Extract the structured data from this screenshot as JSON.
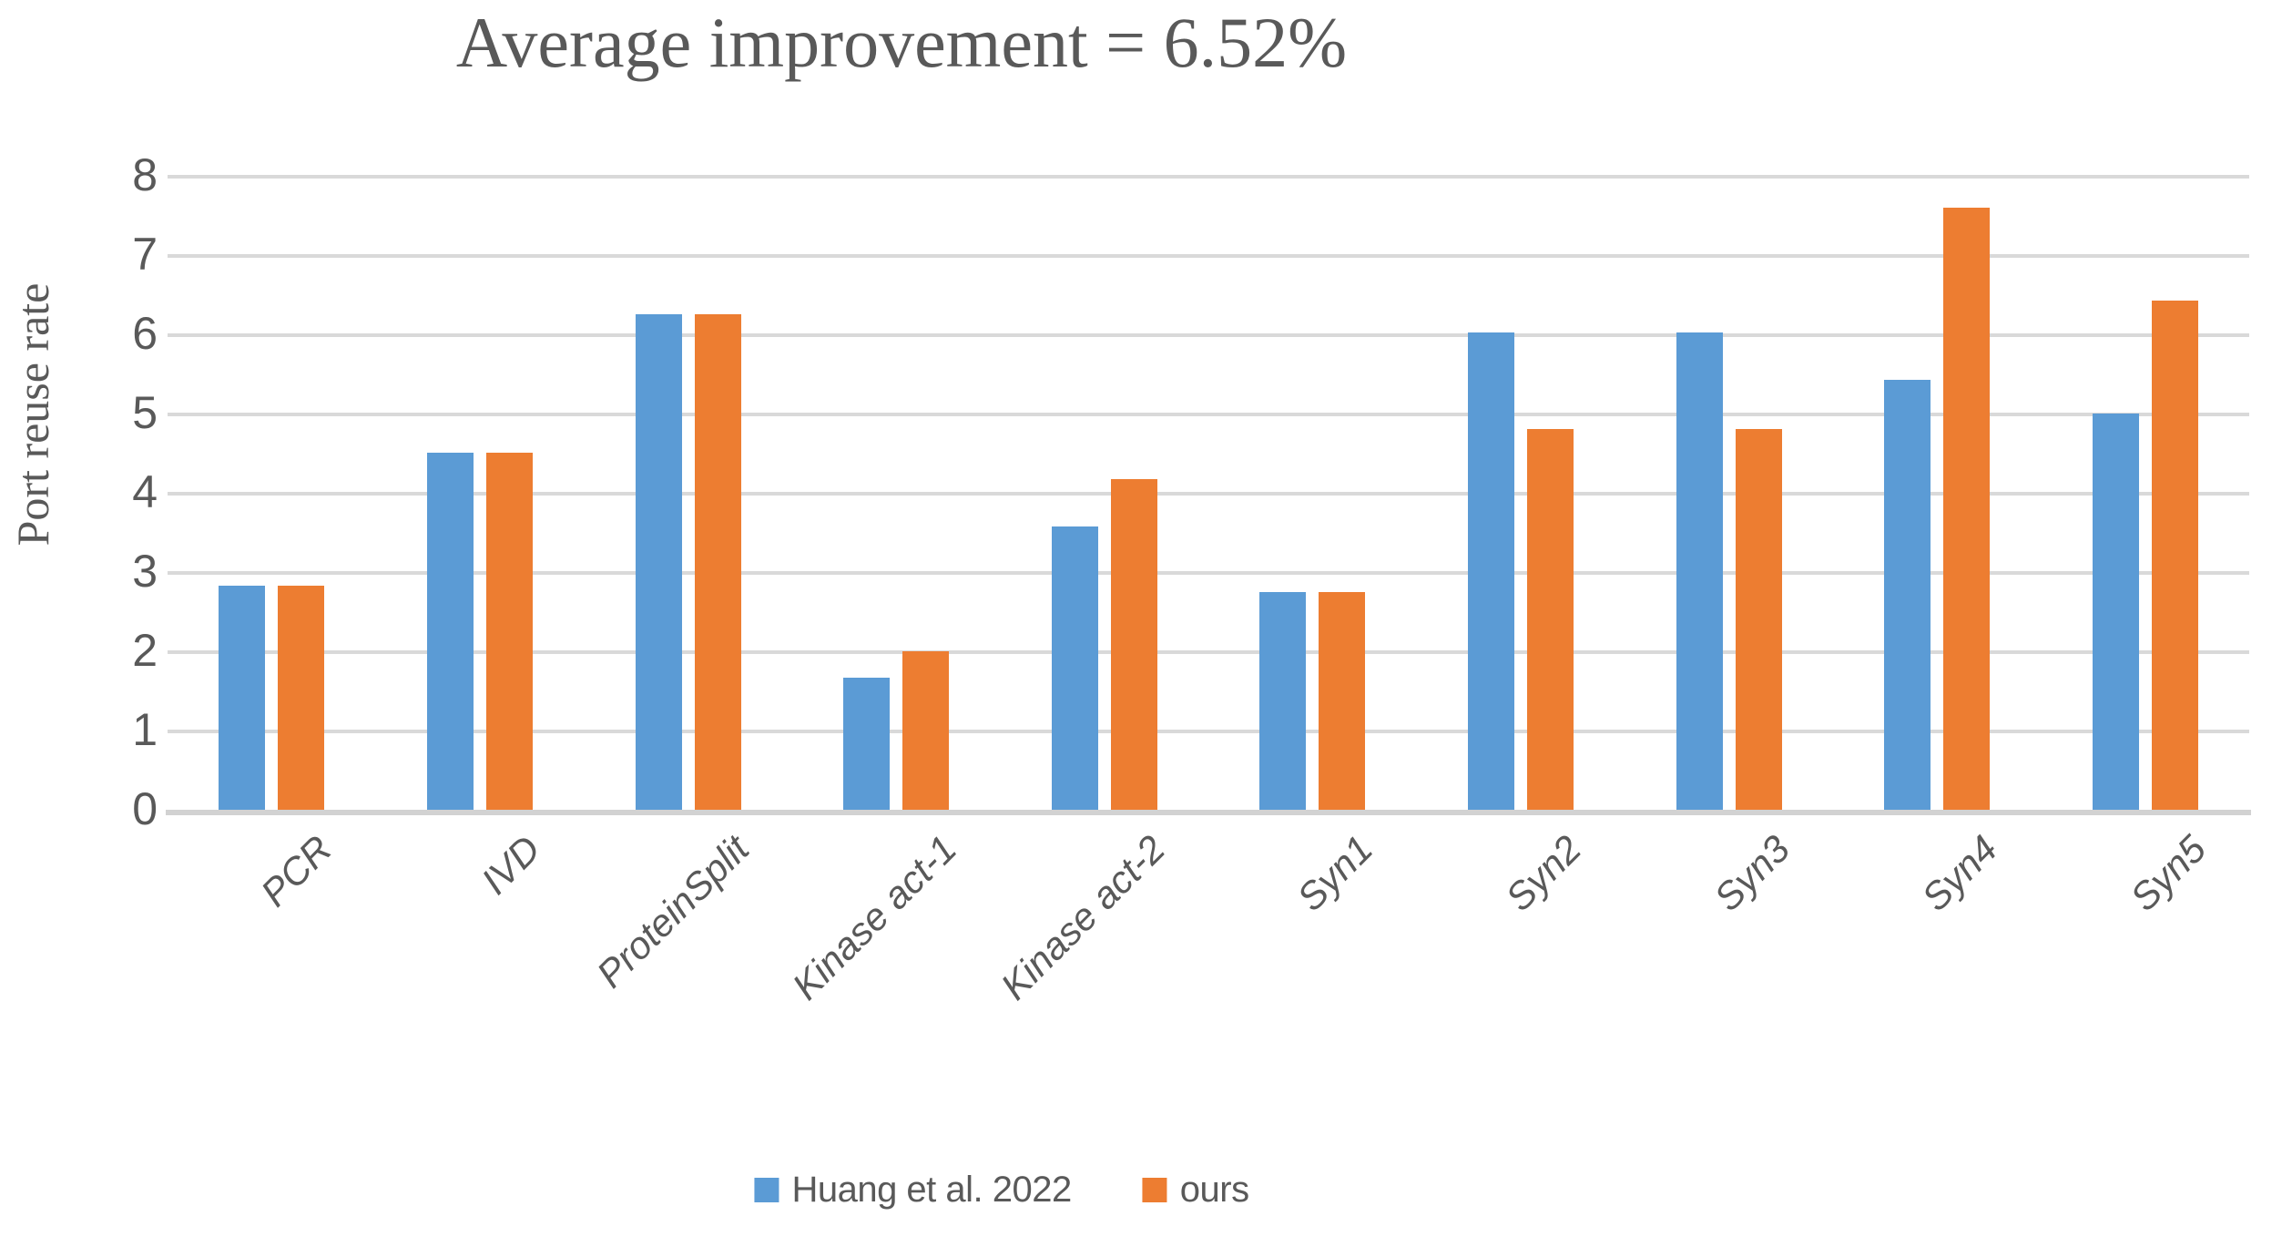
{
  "chart_data": {
    "type": "bar",
    "title": "Average improvement = 6.52%",
    "xlabel": "",
    "ylabel": "Port reuse rate",
    "categories": [
      "PCR",
      "IVD",
      "ProteinSplit",
      "Kinase act-1",
      "Kinase act-2",
      "Syn1",
      "Syn2",
      "Syn3",
      "Syn4",
      "Syn5"
    ],
    "series": [
      {
        "name": "Huang et al. 2022",
        "color": "#5B9BD5",
        "values": [
          2.83,
          4.5,
          6.25,
          1.67,
          3.57,
          2.75,
          6.02,
          6.02,
          5.43,
          5.0
        ]
      },
      {
        "name": "ours",
        "color": "#ED7D31",
        "values": [
          2.83,
          4.5,
          6.25,
          2.0,
          4.17,
          2.75,
          4.8,
          4.8,
          7.6,
          6.43
        ]
      }
    ],
    "ylim": [
      0,
      8
    ],
    "yticks": [
      0,
      1,
      2,
      3,
      4,
      5,
      6,
      7,
      8
    ],
    "grid": "horizontal-major",
    "legend_position": "bottom",
    "bar_value_unit": "rate"
  },
  "colors": {
    "gridline": "#d9d9d9",
    "axis_line": "#d2d2d2",
    "text": "#595959",
    "background": "#ffffff"
  }
}
